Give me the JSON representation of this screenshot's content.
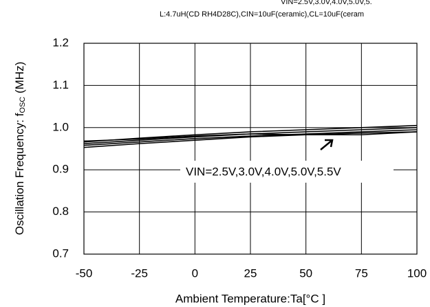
{
  "chart_data": {
    "type": "line",
    "subtitle_lines": [
      "VIN=2.5V,3.0V,4.0V,5.0V,5.",
      "L:4.7uH(CD RH4D28C),CIN=10uF(ceramic),CL=10uF(ceram"
    ],
    "x_label": "Ambient Temperature:Ta[°C ]",
    "y_label_parts": [
      "Oscillation Frequency: f",
      "OSC",
      " (MHz)"
    ],
    "annotation": "VIN=2.5V,3.0V,4.0V,5.0V,5.5V",
    "x": [
      -50,
      -25,
      0,
      25,
      50,
      75,
      100
    ],
    "series": [
      {
        "color": "#000000",
        "values": [
          0.953,
          0.962,
          0.97,
          0.978,
          0.983,
          0.987,
          0.99
        ]
      },
      {
        "color": "#000000",
        "values": [
          0.958,
          0.966,
          0.974,
          0.98,
          0.985,
          0.99,
          0.995
        ]
      },
      {
        "color": "#000000",
        "values": [
          0.962,
          0.97,
          0.978,
          0.985,
          0.99,
          0.995,
          1.0
        ]
      },
      {
        "color": "#000000",
        "values": [
          0.966,
          0.975,
          0.983,
          0.99,
          0.995,
          1.0,
          1.005
        ]
      },
      {
        "color": "#000000",
        "values": [
          0.968,
          0.973,
          0.98,
          0.985,
          0.983,
          0.983,
          0.99
        ]
      }
    ],
    "xlim": [
      -50,
      100
    ],
    "xticks": [
      -50,
      -25,
      0,
      25,
      50,
      75,
      100
    ],
    "ylim": [
      0.7,
      1.2
    ],
    "yticks": [
      0.7,
      0.8,
      0.9,
      {
        "value": 1,
        "label": "1.0"
      },
      1.1,
      1.2
    ],
    "grid": true
  }
}
